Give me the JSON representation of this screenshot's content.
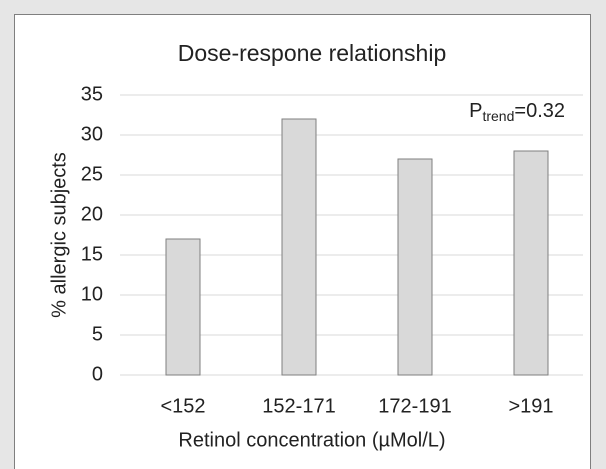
{
  "chart_data": {
    "type": "bar",
    "title": "Dose-respone relationship",
    "categories": [
      "<152",
      "152-171",
      "172-191",
      ">191"
    ],
    "values": [
      17,
      32,
      27,
      28
    ],
    "color": "#d9d9d9",
    "x_label": "Retinol concentration (µMol/L)",
    "y_label": "% allergic subjects",
    "annotation": [
      "P",
      "trend",
      "=0.32"
    ],
    "ylim": [
      0,
      35
    ],
    "yticks": [
      0,
      5,
      10,
      15,
      20,
      25,
      30,
      35
    ],
    "grid": true
  }
}
